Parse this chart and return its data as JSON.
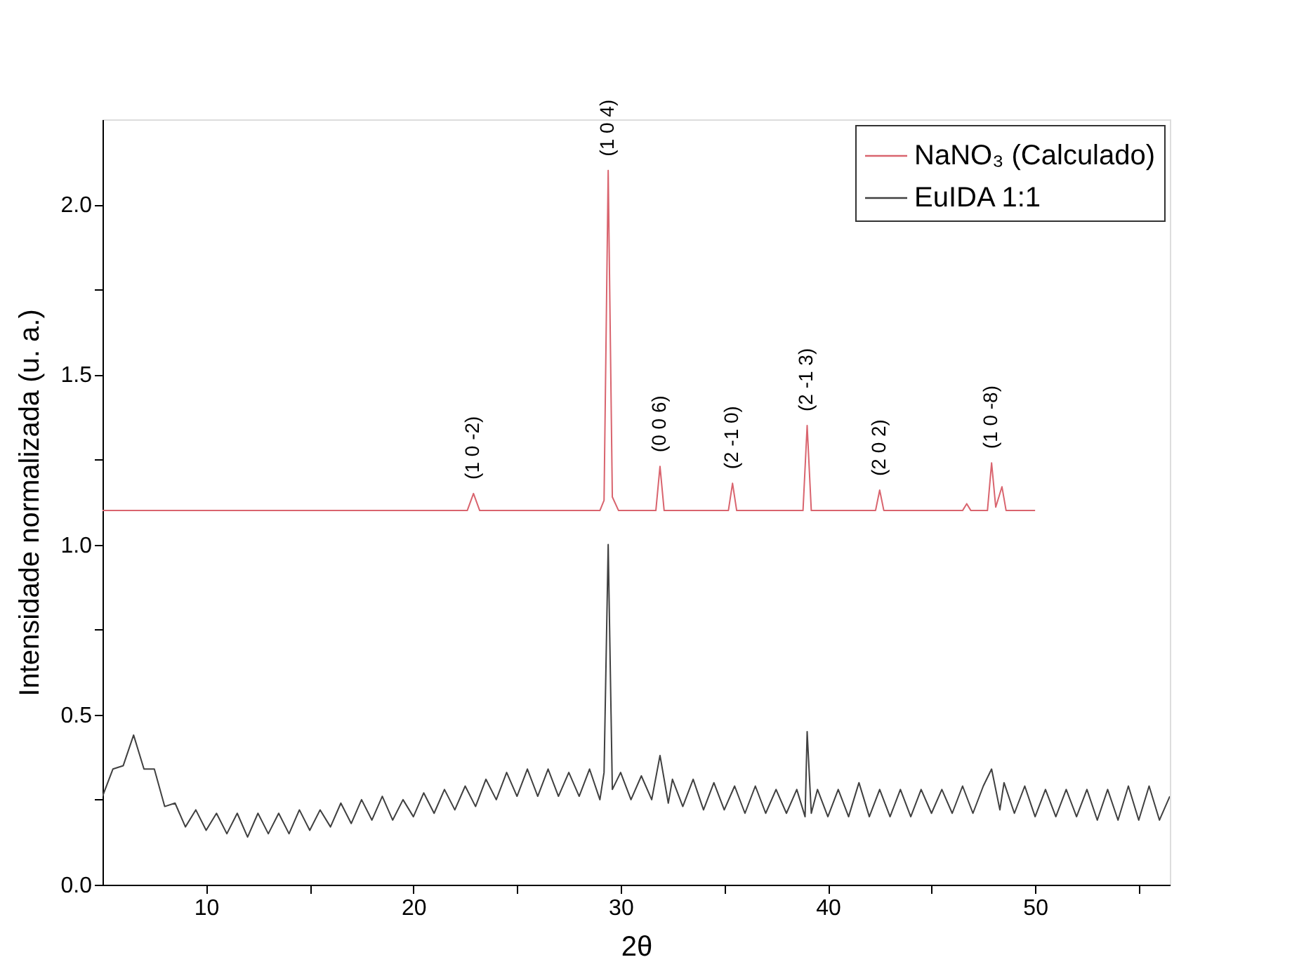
{
  "chart_data": {
    "type": "line",
    "xlabel": "2θ",
    "ylabel": "Intensidade normalizada (u. a.)",
    "xlim": [
      5,
      56.5
    ],
    "ylim": [
      0,
      2.25
    ],
    "xticks": [
      10,
      {
        "value": 15,
        "label": null
      },
      20,
      {
        "value": 25,
        "label": null
      },
      30,
      {
        "value": 35,
        "label": null
      },
      40,
      {
        "value": 45,
        "label": null
      },
      50,
      {
        "value": 55,
        "label": null
      }
    ],
    "yticks": [
      {
        "value": 0,
        "label": "0.0"
      },
      {
        "value": 0.25,
        "label": null
      },
      0.5,
      {
        "value": 0.75,
        "label": null
      },
      {
        "value": 1,
        "label": "1.0"
      },
      {
        "value": 1.25,
        "label": null
      },
      1.5,
      {
        "value": 1.75,
        "label": null
      },
      {
        "value": 2,
        "label": "2.0"
      }
    ],
    "grid": false,
    "legend": "top right",
    "line_style": "solid",
    "marker": "none",
    "series": [
      {
        "name": "NaNO₃ (Calculado)",
        "color": "#d9646e",
        "x": [
          5,
          22.6,
          22.9,
          23.2,
          29.0,
          29.2,
          29.4,
          29.6,
          29.9,
          31.7,
          31.9,
          32.1,
          35.2,
          35.4,
          35.6,
          38.8,
          39.0,
          39.2,
          42.3,
          42.5,
          42.7,
          46.5,
          46.7,
          46.9,
          47.7,
          47.9,
          48.1,
          48.4,
          48.6,
          50
        ],
        "values": [
          1.1,
          1.1,
          1.15,
          1.1,
          1.1,
          1.13,
          2.1,
          1.14,
          1.1,
          1.1,
          1.23,
          1.1,
          1.1,
          1.18,
          1.1,
          1.1,
          1.35,
          1.1,
          1.1,
          1.16,
          1.1,
          1.1,
          1.12,
          1.1,
          1.1,
          1.24,
          1.11,
          1.17,
          1.1,
          1.1
        ]
      },
      {
        "name": "EuIDA 1:1",
        "color": "#404040",
        "x": [
          5,
          5.5,
          6,
          6.5,
          7,
          7.5,
          8,
          8.5,
          9,
          9.5,
          10,
          10.5,
          11,
          11.5,
          12,
          12.5,
          13,
          13.5,
          14,
          14.5,
          15,
          15.5,
          16,
          16.5,
          17,
          17.5,
          18,
          18.5,
          19,
          19.5,
          20,
          20.5,
          21,
          21.5,
          22,
          22.5,
          23,
          23.5,
          24,
          24.5,
          25,
          25.5,
          26,
          26.5,
          27,
          27.5,
          28,
          28.5,
          29,
          29.2,
          29.4,
          29.6,
          30,
          30.5,
          31,
          31.5,
          31.9,
          32.3,
          32.5,
          33,
          33.5,
          34,
          34.5,
          35,
          35.5,
          36,
          36.5,
          37,
          37.5,
          38,
          38.5,
          38.9,
          39.0,
          39.2,
          39.5,
          40,
          40.5,
          41,
          41.5,
          42,
          42.5,
          43,
          43.5,
          44,
          44.5,
          45,
          45.5,
          46,
          46.5,
          47,
          47.5,
          47.9,
          48.3,
          48.5,
          49,
          49.5,
          50,
          50.5,
          51,
          51.5,
          52,
          52.5,
          53,
          53.5,
          54,
          54.5,
          55,
          55.5,
          56,
          56.5
        ],
        "values": [
          0.26,
          0.34,
          0.35,
          0.44,
          0.34,
          0.34,
          0.23,
          0.24,
          0.17,
          0.22,
          0.16,
          0.21,
          0.15,
          0.21,
          0.14,
          0.21,
          0.15,
          0.21,
          0.15,
          0.22,
          0.16,
          0.22,
          0.17,
          0.24,
          0.18,
          0.25,
          0.19,
          0.26,
          0.19,
          0.25,
          0.2,
          0.27,
          0.21,
          0.28,
          0.22,
          0.29,
          0.23,
          0.31,
          0.25,
          0.33,
          0.26,
          0.34,
          0.26,
          0.34,
          0.26,
          0.33,
          0.26,
          0.34,
          0.25,
          0.33,
          1.0,
          0.28,
          0.33,
          0.25,
          0.32,
          0.25,
          0.38,
          0.24,
          0.31,
          0.23,
          0.31,
          0.22,
          0.3,
          0.22,
          0.29,
          0.21,
          0.29,
          0.21,
          0.28,
          0.21,
          0.28,
          0.2,
          0.45,
          0.21,
          0.28,
          0.2,
          0.28,
          0.2,
          0.3,
          0.2,
          0.28,
          0.2,
          0.28,
          0.2,
          0.28,
          0.21,
          0.28,
          0.21,
          0.29,
          0.21,
          0.29,
          0.34,
          0.22,
          0.3,
          0.21,
          0.29,
          0.2,
          0.28,
          0.2,
          0.28,
          0.2,
          0.28,
          0.19,
          0.28,
          0.19,
          0.29,
          0.19,
          0.29,
          0.19,
          0.26
        ]
      }
    ],
    "annotations": [
      {
        "text": "(1 0 -2)",
        "x": 22.9,
        "y": 1.15
      },
      {
        "text": "(1 0 4)",
        "x": 29.4,
        "y": 2.1
      },
      {
        "text": "(0 0 6)",
        "x": 31.9,
        "y": 1.23
      },
      {
        "text": "(2 -1 0)",
        "x": 35.4,
        "y": 1.18
      },
      {
        "text": "(2 -1 3)",
        "x": 39.0,
        "y": 1.35
      },
      {
        "text": "(2 0 2)",
        "x": 42.5,
        "y": 1.16
      },
      {
        "text": "(1 0 -8)",
        "x": 47.9,
        "y": 1.24
      }
    ]
  }
}
